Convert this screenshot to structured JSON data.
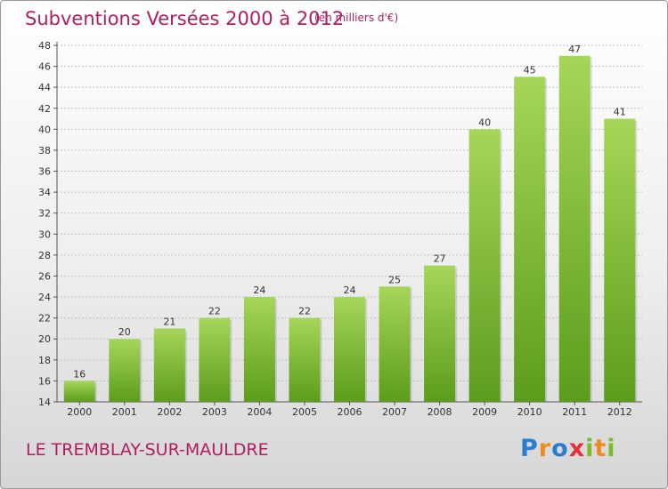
{
  "title": "Subventions Versées 2000 à 2012",
  "subtitle": "(en milliers d'€)",
  "commune": "LE TREMBLAY-SUR-MAULDRE",
  "brand": {
    "letters": [
      "P",
      "r",
      "o",
      "x",
      "i",
      "t",
      "i"
    ],
    "colors": [
      "#2a7dd1",
      "#f08a1c",
      "#2a7dd1",
      "#e2303c",
      "#7dba2e",
      "#f08a1c",
      "#7dba2e"
    ]
  },
  "colors": {
    "bar_light": "#a6d659",
    "bar_dark": "#5c9c1c",
    "text": "#b01e62",
    "axis": "#555555",
    "grid": "#c0c0c0"
  },
  "chart_data": {
    "type": "bar",
    "title": "Subventions Versées 2000 à 2012",
    "subtitle": "(en milliers d'€)",
    "xlabel": "",
    "ylabel": "",
    "categories": [
      "2000",
      "2001",
      "2002",
      "2003",
      "2004",
      "2005",
      "2006",
      "2007",
      "2008",
      "2009",
      "2010",
      "2011",
      "2012"
    ],
    "values": [
      16,
      20,
      21,
      22,
      24,
      22,
      24,
      25,
      27,
      40,
      45,
      47,
      41
    ],
    "ylim": [
      14,
      48
    ],
    "yticks": [
      14,
      16,
      18,
      20,
      22,
      24,
      26,
      28,
      30,
      32,
      34,
      36,
      38,
      40,
      42,
      44,
      46,
      48
    ],
    "grid": true,
    "data_labels": true
  }
}
